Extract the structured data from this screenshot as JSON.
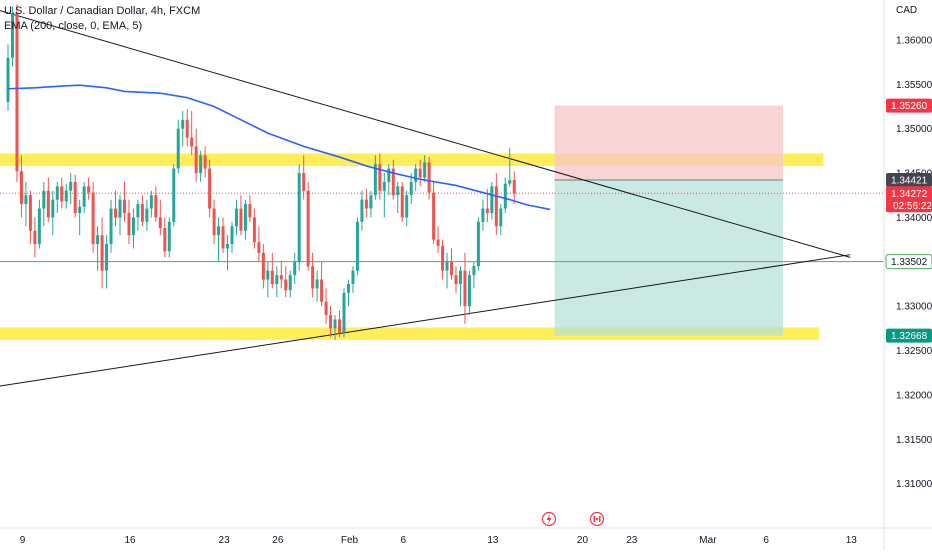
{
  "header": {
    "symbol_line": "U.S. Dollar / Canadian Dollar, 4h, FXCM",
    "indicator_line": "EMA (200, close, 0, EMA, 5)"
  },
  "currency": "CAD",
  "colors": {
    "up": "#26a69a",
    "down": "#ef5350",
    "ema": "#2962ff",
    "zone": "#ffeb3b",
    "trend": "#131722",
    "hline": "#4caf50",
    "stop_zone": "#f7c5c8",
    "target_zone": "#b2dfd6",
    "badge_red": "#f23645",
    "badge_green": "#089981",
    "badge_gray": "#434651"
  },
  "chart_data": {
    "type": "candlestick",
    "ylim": [
      1.305,
      1.3645
    ],
    "y_ticks": [
      "1.36000",
      "1.35500",
      "1.35000",
      "1.34500",
      "1.34000",
      "1.33500",
      "1.33000",
      "1.32500",
      "1.32000",
      "1.31500",
      "1.31000"
    ],
    "y_tick_values": [
      1.36,
      1.355,
      1.35,
      1.345,
      1.34,
      1.335,
      1.33,
      1.325,
      1.32,
      1.315,
      1.31
    ],
    "x_ticks": [
      "9",
      "16",
      "23",
      "26",
      "Feb",
      "6",
      "13",
      "20",
      "23",
      "Mar",
      "6",
      "13"
    ],
    "x_tick_bars": [
      1,
      25,
      46,
      58,
      74,
      86,
      106,
      126,
      137,
      154,
      167,
      186
    ],
    "bar_count": 188,
    "last_price": 1.34272,
    "countdown": "02:56:22",
    "price_labels": [
      {
        "value": 1.3526,
        "text": "1.35260",
        "kind": "red"
      },
      {
        "value": 1.34421,
        "text": "1.34421",
        "kind": "gray"
      },
      {
        "value": 1.34272,
        "text": "1.34272",
        "kind": "red"
      },
      {
        "value": 1.33502,
        "text": "1.33502",
        "kind": "green-line"
      },
      {
        "value": 1.32668,
        "text": "1.32668",
        "kind": "green"
      }
    ],
    "zones": [
      {
        "low": 1.3458,
        "high": 1.3472,
        "x0_bar": 0,
        "x1_bar": 182
      },
      {
        "low": 1.3262,
        "high": 1.3276,
        "x0_bar": 0,
        "x1_bar": 181
      }
    ],
    "horizontal_line": 1.33502,
    "trendlines": [
      {
        "from": {
          "bar": 0,
          "price": 1.3633
        },
        "to": {
          "bar": 188,
          "price": 1.3355
        }
      },
      {
        "from": {
          "bar": 0,
          "price": 1.321
        },
        "to": {
          "bar": 188,
          "price": 1.3358
        }
      }
    ],
    "position": {
      "entry": 1.34421,
      "stop": 1.3526,
      "target": 1.32668,
      "from_bar": 122,
      "to_bar": 173
    },
    "ema": [
      [
        0,
        1.3545
      ],
      [
        6,
        1.3546
      ],
      [
        12,
        1.3548
      ],
      [
        16,
        1.3549
      ],
      [
        22,
        1.3546
      ],
      [
        26,
        1.3542
      ],
      [
        34,
        1.354
      ],
      [
        40,
        1.3535
      ],
      [
        46,
        1.3525
      ],
      [
        52,
        1.351
      ],
      [
        58,
        1.3495
      ],
      [
        66,
        1.348
      ],
      [
        74,
        1.3468
      ],
      [
        80,
        1.3458
      ],
      [
        86,
        1.345
      ],
      [
        92,
        1.3443
      ],
      [
        100,
        1.3436
      ],
      [
        106,
        1.3428
      ],
      [
        112,
        1.342
      ],
      [
        116,
        1.3414
      ],
      [
        121,
        1.3409
      ]
    ],
    "candles": [
      [
        1.353,
        1.3595,
        1.352,
        1.358
      ],
      [
        1.358,
        1.3638,
        1.357,
        1.363
      ],
      [
        1.363,
        1.364,
        1.344,
        1.3452
      ],
      [
        1.3452,
        1.347,
        1.34,
        1.3415
      ],
      [
        1.3415,
        1.344,
        1.339,
        1.3425
      ],
      [
        1.3425,
        1.343,
        1.337,
        1.3385
      ],
      [
        1.3385,
        1.34,
        1.3355,
        1.337
      ],
      [
        1.337,
        1.342,
        1.3365,
        1.341
      ],
      [
        1.341,
        1.344,
        1.339,
        1.343
      ],
      [
        1.343,
        1.3445,
        1.3395,
        1.34
      ],
      [
        1.34,
        1.343,
        1.338,
        1.342
      ],
      [
        1.342,
        1.344,
        1.3405,
        1.3435
      ],
      [
        1.3435,
        1.3445,
        1.341,
        1.3418
      ],
      [
        1.3418,
        1.3438,
        1.341,
        1.343
      ],
      [
        1.343,
        1.345,
        1.3415,
        1.344
      ],
      [
        1.344,
        1.3448,
        1.34,
        1.3405
      ],
      [
        1.3405,
        1.342,
        1.338,
        1.3412
      ],
      [
        1.3412,
        1.344,
        1.3405,
        1.3435
      ],
      [
        1.3435,
        1.3445,
        1.342,
        1.3428
      ],
      [
        1.3428,
        1.344,
        1.336,
        1.337
      ],
      [
        1.337,
        1.339,
        1.334,
        1.338
      ],
      [
        1.338,
        1.34,
        1.332,
        1.334
      ],
      [
        1.334,
        1.338,
        1.332,
        1.337
      ],
      [
        1.337,
        1.342,
        1.336,
        1.341
      ],
      [
        1.341,
        1.343,
        1.339,
        1.34
      ],
      [
        1.34,
        1.3425,
        1.338,
        1.342
      ],
      [
        1.342,
        1.344,
        1.3395,
        1.3405
      ],
      [
        1.3405,
        1.342,
        1.337,
        1.338
      ],
      [
        1.338,
        1.341,
        1.3365,
        1.34
      ],
      [
        1.34,
        1.342,
        1.3385,
        1.3415
      ],
      [
        1.3415,
        1.3425,
        1.339,
        1.3395
      ],
      [
        1.3395,
        1.342,
        1.3385,
        1.341
      ],
      [
        1.341,
        1.343,
        1.34,
        1.3425
      ],
      [
        1.3425,
        1.3435,
        1.3395,
        1.34
      ],
      [
        1.34,
        1.342,
        1.338,
        1.3388
      ],
      [
        1.3388,
        1.34,
        1.3355,
        1.3362
      ],
      [
        1.3362,
        1.34,
        1.3355,
        1.3395
      ],
      [
        1.3395,
        1.346,
        1.339,
        1.3455
      ],
      [
        1.3455,
        1.351,
        1.345,
        1.35
      ],
      [
        1.35,
        1.352,
        1.348,
        1.351
      ],
      [
        1.351,
        1.3522,
        1.348,
        1.349
      ],
      [
        1.349,
        1.352,
        1.347,
        1.348
      ],
      [
        1.348,
        1.35,
        1.344,
        1.345
      ],
      [
        1.345,
        1.3475,
        1.344,
        1.347
      ],
      [
        1.347,
        1.348,
        1.3445,
        1.3455
      ],
      [
        1.3455,
        1.3465,
        1.34,
        1.341
      ],
      [
        1.341,
        1.342,
        1.337,
        1.338
      ],
      [
        1.338,
        1.34,
        1.335,
        1.339
      ],
      [
        1.339,
        1.34,
        1.336,
        1.3365
      ],
      [
        1.3365,
        1.338,
        1.334,
        1.337
      ],
      [
        1.337,
        1.3395,
        1.336,
        1.339
      ],
      [
        1.339,
        1.342,
        1.338,
        1.341
      ],
      [
        1.341,
        1.3425,
        1.338,
        1.3385
      ],
      [
        1.3385,
        1.342,
        1.3375,
        1.3415
      ],
      [
        1.3415,
        1.3425,
        1.3395,
        1.34
      ],
      [
        1.34,
        1.341,
        1.3365,
        1.3372
      ],
      [
        1.3372,
        1.339,
        1.335,
        1.336
      ],
      [
        1.336,
        1.337,
        1.332,
        1.333
      ],
      [
        1.333,
        1.335,
        1.331,
        1.334
      ],
      [
        1.334,
        1.336,
        1.332,
        1.3325
      ],
      [
        1.3325,
        1.3345,
        1.331,
        1.3335
      ],
      [
        1.3335,
        1.335,
        1.332,
        1.333
      ],
      [
        1.333,
        1.3345,
        1.331,
        1.3318
      ],
      [
        1.3318,
        1.334,
        1.331,
        1.3335
      ],
      [
        1.3335,
        1.336,
        1.3325,
        1.335
      ],
      [
        1.335,
        1.346,
        1.334,
        1.345
      ],
      [
        1.345,
        1.347,
        1.342,
        1.343
      ],
      [
        1.343,
        1.344,
        1.334,
        1.3345
      ],
      [
        1.3345,
        1.336,
        1.331,
        1.332
      ],
      [
        1.332,
        1.334,
        1.3305,
        1.333
      ],
      [
        1.333,
        1.335,
        1.33,
        1.3305
      ],
      [
        1.3305,
        1.332,
        1.328,
        1.329
      ],
      [
        1.329,
        1.33,
        1.3265,
        1.3275
      ],
      [
        1.3275,
        1.329,
        1.3262,
        1.3285
      ],
      [
        1.3285,
        1.3295,
        1.3265,
        1.327
      ],
      [
        1.327,
        1.332,
        1.3265,
        1.3315
      ],
      [
        1.3315,
        1.333,
        1.33,
        1.3325
      ],
      [
        1.3325,
        1.3345,
        1.3315,
        1.334
      ],
      [
        1.334,
        1.34,
        1.3335,
        1.3395
      ],
      [
        1.3395,
        1.343,
        1.3385,
        1.342
      ],
      [
        1.342,
        1.3432,
        1.34,
        1.341
      ],
      [
        1.341,
        1.343,
        1.34,
        1.3425
      ],
      [
        1.3425,
        1.347,
        1.342,
        1.346
      ],
      [
        1.346,
        1.3472,
        1.342,
        1.343
      ],
      [
        1.343,
        1.345,
        1.34,
        1.344
      ],
      [
        1.344,
        1.346,
        1.3425,
        1.3455
      ],
      [
        1.3455,
        1.3465,
        1.342,
        1.3425
      ],
      [
        1.3425,
        1.344,
        1.3405,
        1.3435
      ],
      [
        1.3435,
        1.344,
        1.3395,
        1.34
      ],
      [
        1.34,
        1.343,
        1.339,
        1.3425
      ],
      [
        1.3425,
        1.345,
        1.3415,
        1.344
      ],
      [
        1.344,
        1.346,
        1.343,
        1.3455
      ],
      [
        1.3455,
        1.3465,
        1.3435,
        1.3445
      ],
      [
        1.3445,
        1.347,
        1.344,
        1.3462
      ],
      [
        1.3462,
        1.3468,
        1.342,
        1.3428
      ],
      [
        1.3428,
        1.344,
        1.337,
        1.3375
      ],
      [
        1.3375,
        1.339,
        1.336,
        1.3368
      ],
      [
        1.3368,
        1.3375,
        1.333,
        1.334
      ],
      [
        1.334,
        1.336,
        1.332,
        1.335
      ],
      [
        1.335,
        1.3365,
        1.333,
        1.3335
      ],
      [
        1.3335,
        1.3345,
        1.3315,
        1.3325
      ],
      [
        1.3325,
        1.3345,
        1.33,
        1.334
      ],
      [
        1.334,
        1.336,
        1.328,
        1.33
      ],
      [
        1.33,
        1.334,
        1.329,
        1.3335
      ],
      [
        1.3335,
        1.335,
        1.332,
        1.3345
      ],
      [
        1.3345,
        1.34,
        1.334,
        1.3395
      ],
      [
        1.3395,
        1.342,
        1.3385,
        1.341
      ],
      [
        1.341,
        1.3432,
        1.3395,
        1.3405
      ],
      [
        1.3405,
        1.344,
        1.3398,
        1.3435
      ],
      [
        1.3435,
        1.345,
        1.338,
        1.339
      ],
      [
        1.339,
        1.3415,
        1.338,
        1.341
      ],
      [
        1.341,
        1.3445,
        1.3405,
        1.3438
      ],
      [
        1.3438,
        1.3478,
        1.3435,
        1.3442
      ],
      [
        1.3442,
        1.3452,
        1.3415,
        1.3427
      ]
    ]
  },
  "footer_icons": [
    "lightning-event-icon",
    "canada-flag-event-icon"
  ]
}
